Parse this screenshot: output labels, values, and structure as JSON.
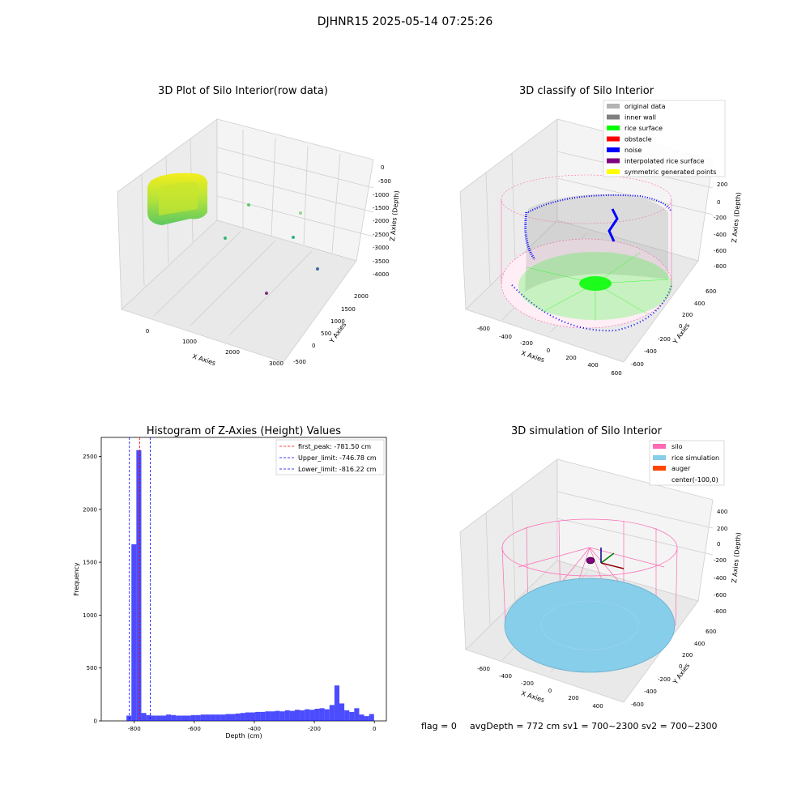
{
  "suptitle": "DJHNR15 2025-05-14 07:25:26",
  "footer": {
    "flag": "flag = 0",
    "stats": "avgDepth = 772 cm  sv1 = 700~2300  sv2 = 700~2300"
  },
  "colors": {
    "original": "#b4b4b4",
    "inner_wall": "#808080",
    "rice_surface": "#00ff00",
    "obstacle": "#ff0000",
    "noise": "#0000ff",
    "interpolated": "#800080",
    "symmetric": "#ffff00",
    "silo": "#ff69b4",
    "rice_sim": "#87ceeb",
    "auger": "#ff4500",
    "hist_bar": "#0000ff",
    "first_peak": "#ff0000",
    "limit": "#0000ff"
  },
  "raw_plot": {
    "title": "3D Plot of Silo Interior(row data)",
    "xlabel": "X Axies",
    "ylabel": "Y Axies",
    "zlabel": "Z Axies (Depth)",
    "xticks": [
      "0",
      "1000",
      "2000",
      "3000"
    ],
    "yticks": [
      "-500",
      "0",
      "500",
      "1000",
      "1500",
      "2000"
    ],
    "zticks": [
      "0",
      "-500",
      "-1000",
      "-1500",
      "-2000",
      "-2500",
      "-3000",
      "-3500",
      "-4000"
    ]
  },
  "classify_plot": {
    "title": "3D classify of Silo Interior",
    "xlabel": "X Axies",
    "ylabel": "Y Axies",
    "zlabel": "Z Axies (Depth)",
    "xticks": [
      "-600",
      "-400",
      "-200",
      "0",
      "200",
      "400",
      "600"
    ],
    "yticks": [
      "-600",
      "-400",
      "-200",
      "0",
      "200",
      "400",
      "600"
    ],
    "zticks": [
      "200",
      "0",
      "-200",
      "-400",
      "-600",
      "-800"
    ],
    "legend": [
      {
        "label": "original data",
        "color": "#b4b4b4"
      },
      {
        "label": "inner wall",
        "color": "#808080"
      },
      {
        "label": "rice surface",
        "color": "#00ff00"
      },
      {
        "label": "obstacle",
        "color": "#ff0000"
      },
      {
        "label": "noise",
        "color": "#0000ff"
      },
      {
        "label": "interpolated rice surface",
        "color": "#800080"
      },
      {
        "label": "symmetric generated points",
        "color": "#ffff00"
      }
    ]
  },
  "sim_plot": {
    "title": "3D simulation of Silo Interior",
    "xlabel": "X Axies",
    "ylabel": "Y Axies",
    "zlabel": "Z Axies (Depth)",
    "xticks": [
      "-600",
      "-400",
      "-200",
      "0",
      "200",
      "400"
    ],
    "yticks": [
      "-600",
      "-400",
      "-200",
      "0",
      "200",
      "400",
      "600"
    ],
    "zticks": [
      "400",
      "200",
      "0",
      "-200",
      "-400",
      "-600",
      "-800"
    ],
    "legend": [
      {
        "label": "silo",
        "color": "#ff69b4"
      },
      {
        "label": "rice simulation",
        "color": "#87ceeb"
      },
      {
        "label": "auger",
        "color": "#ff4500"
      },
      {
        "label": "center(-100,0)",
        "color": ""
      }
    ]
  },
  "chart_data": {
    "type": "bar",
    "title": "Histogram of Z-Axies (Height) Values",
    "xlabel": "Depth (cm)",
    "ylabel": "Frequency",
    "xlim": [
      -910,
      40
    ],
    "ylim": [
      0,
      2680
    ],
    "xticks": [
      -800,
      -600,
      -400,
      -200,
      0
    ],
    "yticks": [
      0,
      500,
      1000,
      1500,
      2000,
      2500
    ],
    "bin_width": 16.5,
    "bin_starts": [
      -826,
      -809.5,
      -793,
      -776.5,
      -760,
      -743.5,
      -727,
      -710.5,
      -694,
      -677.5,
      -661,
      -644.5,
      -628,
      -611.5,
      -595,
      -578.5,
      -562,
      -545.5,
      -529,
      -512.5,
      -496,
      -479.5,
      -463,
      -446.5,
      -430,
      -413.5,
      -397,
      -380.5,
      -364,
      -347.5,
      -331,
      -314.5,
      -298,
      -281.5,
      -265,
      -248.5,
      -232,
      -215.5,
      -199,
      -182.5,
      -166,
      -149.5,
      -133,
      -116.5,
      -100,
      -83.5,
      -67,
      -50.5,
      -34,
      -17.5
    ],
    "values": [
      50,
      1670,
      2560,
      75,
      55,
      50,
      50,
      50,
      60,
      55,
      50,
      50,
      50,
      55,
      55,
      60,
      60,
      60,
      60,
      60,
      65,
      65,
      70,
      75,
      80,
      80,
      85,
      85,
      90,
      90,
      95,
      90,
      100,
      95,
      105,
      100,
      110,
      105,
      115,
      120,
      110,
      150,
      335,
      165,
      100,
      85,
      120,
      60,
      45,
      65
    ],
    "lines": [
      {
        "label": "first_peak: -781.50 cm",
        "x": -781.5,
        "color": "#ff0000"
      },
      {
        "label": "Upper_limit: -746.78 cm",
        "x": -746.78,
        "color": "#0000ff"
      },
      {
        "label": "Lower_limit: -816.22 cm",
        "x": -816.22,
        "color": "#0000ff"
      }
    ]
  }
}
